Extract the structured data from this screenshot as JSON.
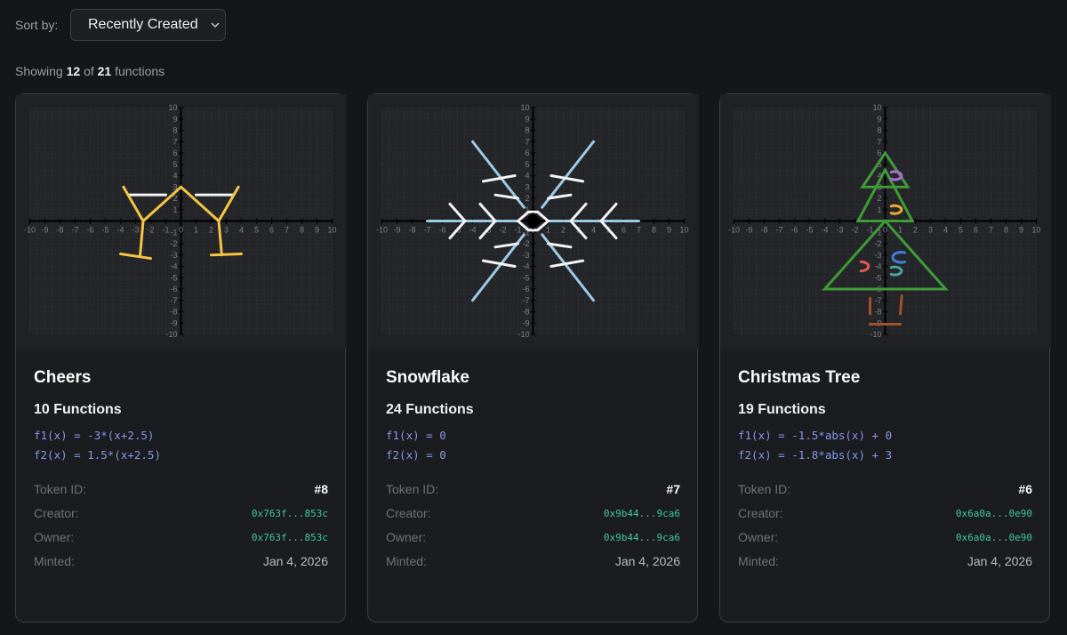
{
  "sort": {
    "label": "Sort by:",
    "selected": "Recently Created"
  },
  "summary": {
    "showing": "Showing",
    "shown": 12,
    "of": "of",
    "total": 21,
    "noun": "functions"
  },
  "axis_ticks": [
    -10,
    -9,
    -8,
    -7,
    -6,
    -5,
    -4,
    -3,
    -2,
    -1,
    0,
    1,
    2,
    3,
    4,
    5,
    6,
    7,
    8,
    9,
    10
  ],
  "cards": [
    {
      "title": "Cheers",
      "function_count": "10 Functions",
      "functions": [
        "f1(x) = -3*(x+2.5)",
        "f2(x) = 1.5*(x+2.5)"
      ],
      "fields": [
        {
          "label": "Token ID:",
          "value": "#8"
        },
        {
          "label": "Creator:",
          "value": "0x763f...853c"
        },
        {
          "label": "Owner:",
          "value": "0x763f...853c"
        },
        {
          "label": "Minted:",
          "value": "Jan 4, 2026"
        }
      ]
    },
    {
      "title": "Snowflake",
      "function_count": "24 Functions",
      "functions": [
        "f1(x) = 0",
        "f2(x) = 0"
      ],
      "fields": [
        {
          "label": "Token ID:",
          "value": "#7"
        },
        {
          "label": "Creator:",
          "value": "0x9b44...9ca6"
        },
        {
          "label": "Owner:",
          "value": "0x9b44...9ca6"
        },
        {
          "label": "Minted:",
          "value": "Jan 4, 2026"
        }
      ]
    },
    {
      "title": "Christmas Tree",
      "function_count": "19 Functions",
      "functions": [
        "f1(x) = -1.5*abs(x) + 0",
        "f2(x) = -1.8*abs(x) + 3"
      ],
      "fields": [
        {
          "label": "Token ID:",
          "value": "#6"
        },
        {
          "label": "Creator:",
          "value": "0x6a0a...0e90"
        },
        {
          "label": "Owner:",
          "value": "0x6a0a...0e90"
        },
        {
          "label": "Minted:",
          "value": "Jan 4, 2026"
        }
      ]
    }
  ]
}
